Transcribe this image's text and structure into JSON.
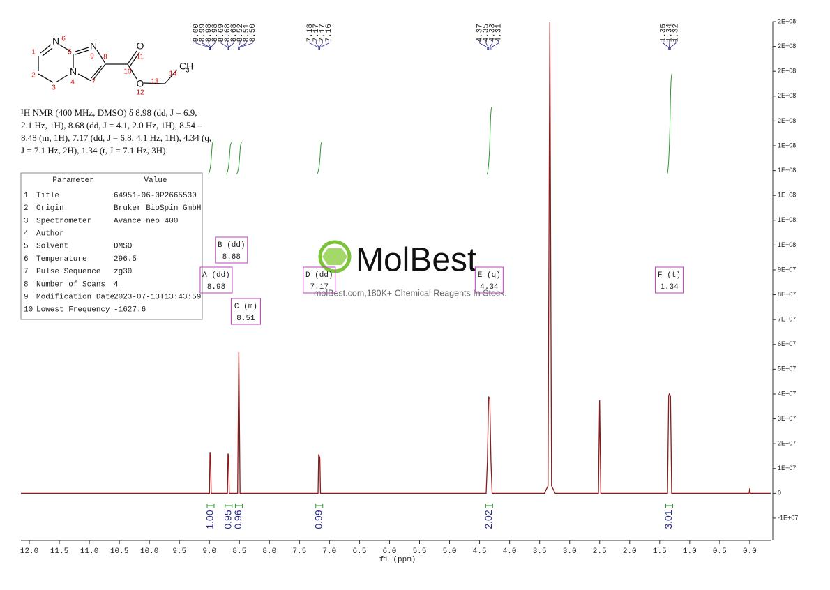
{
  "structure": {
    "atoms": [
      "N",
      "N",
      "N",
      "O",
      "O",
      "CH",
      "3"
    ],
    "numbers": [
      "1",
      "2",
      "3",
      "4",
      "5",
      "6",
      "7",
      "8",
      "9",
      "10",
      "11",
      "12",
      "13",
      "14"
    ]
  },
  "description": [
    "¹H NMR (400 MHz, DMSO) δ 8.98 (dd, J = 6.9,",
    "2.1 Hz, 1H), 8.68 (dd, J = 4.1, 2.0 Hz, 1H), 8.54 –",
    "8.48 (m, 1H), 7.17 (dd, J = 6.8, 4.1 Hz, 1H), 4.34 (q,",
    "J = 7.1 Hz, 2H), 1.34 (t, J = 7.1 Hz, 3H)."
  ],
  "parameters": {
    "header": [
      "Parameter",
      "Value"
    ],
    "rows": [
      [
        "1",
        "Title",
        "64951-06-0P2665530"
      ],
      [
        "2",
        "Origin",
        "Bruker BioSpin GmbH"
      ],
      [
        "3",
        "Spectrometer",
        "Avance neo 400"
      ],
      [
        "4",
        "Author"
      ],
      [
        "5",
        "Solvent",
        "DMSO"
      ],
      [
        "6",
        "Temperature",
        "296.5"
      ],
      [
        "7",
        "Pulse Sequence",
        "zg30"
      ],
      [
        "8",
        "Number of Scans",
        "4"
      ],
      [
        "9",
        "Modification Date",
        "2023-07-13T13:43:59"
      ],
      [
        "10",
        "Lowest Frequency",
        "-1627.6"
      ]
    ]
  },
  "watermark": {
    "brand": "MolBest",
    "tagline": "molBest.com,180K+ Chemical Reagents In Stock."
  },
  "chart_data": {
    "type": "line",
    "color": "#8b1a1a",
    "xlabel": "f1 (ppm)",
    "x": [
      12.14,
      9.0,
      8.99,
      8.98,
      8.97,
      8.7,
      8.69,
      8.68,
      8.67,
      8.53,
      8.51,
      8.49,
      7.19,
      7.18,
      7.17,
      7.16,
      7.15,
      4.39,
      4.37,
      4.35,
      4.33,
      4.31,
      4.29,
      3.42,
      3.36,
      3.33,
      3.3,
      3.24,
      2.52,
      2.5,
      2.48,
      1.37,
      1.35,
      1.34,
      1.32,
      1.3,
      0.01,
      0.0,
      -0.01,
      -0.35
    ],
    "values": [
      0,
      0,
      16600000,
      15000000,
      0,
      0,
      16000000,
      15000000,
      0,
      0,
      57000000,
      0,
      0,
      15700000,
      15000000,
      14000000,
      0,
      0,
      13000000,
      39000000,
      38000000,
      13000000,
      0,
      0,
      3000000,
      190000000,
      3000000,
      0,
      0,
      37500000,
      0,
      0,
      39000000,
      40000000,
      39000000,
      0,
      0,
      2000000,
      0,
      0
    ],
    "xlim": [
      12.14,
      -0.35
    ],
    "ylim": [
      -19000000,
      190000000
    ],
    "xticks": [
      {
        "value": 12,
        "label": "12.0"
      },
      11.5,
      {
        "value": 11,
        "label": "11.0"
      },
      10.5,
      {
        "value": 10,
        "label": "10.0"
      },
      9.5,
      {
        "value": 9,
        "label": "9.0"
      },
      8.5,
      {
        "value": 8,
        "label": "8.0"
      },
      7.5,
      {
        "value": 7,
        "label": "7.0"
      },
      6.5,
      {
        "value": 6,
        "label": "6.0"
      },
      5.5,
      {
        "value": 5,
        "label": "5.0"
      },
      4.5,
      {
        "value": 4,
        "label": "4.0"
      },
      3.5,
      {
        "value": 3,
        "label": "3.0"
      },
      2.5,
      {
        "value": 2,
        "label": "2.0"
      },
      1.5,
      {
        "value": 1,
        "label": "1.0"
      },
      0.5,
      {
        "value": 0,
        "label": "0.0"
      }
    ],
    "yticks": [
      {
        "value": -10000000,
        "label": "-1E+07"
      },
      0,
      {
        "value": 10000000,
        "label": "1E+07"
      },
      {
        "value": 20000000,
        "label": "2E+07"
      },
      {
        "value": 30000000,
        "label": "3E+07"
      },
      {
        "value": 40000000,
        "label": "4E+07"
      },
      {
        "value": 50000000,
        "label": "5E+07"
      },
      {
        "value": 60000000,
        "label": "6E+07"
      },
      {
        "value": 70000000,
        "label": "7E+07"
      },
      {
        "value": 80000000,
        "label": "8E+07"
      },
      {
        "value": 90000000,
        "label": "9E+07"
      },
      {
        "value": 100000000,
        "label": "1E+08"
      },
      {
        "value": 110000000,
        "label": "1E+08"
      },
      {
        "value": 120000000,
        "label": "1E+08"
      },
      {
        "value": 130000000,
        "label": "1E+08"
      },
      {
        "value": 140000000,
        "label": "1E+08"
      },
      {
        "value": 150000000,
        "label": "2E+08"
      },
      {
        "value": 160000000,
        "label": "2E+08"
      },
      {
        "value": 170000000,
        "label": "2E+08"
      },
      {
        "value": 180000000,
        "label": "2E+08"
      },
      {
        "value": 190000000,
        "label": "2E+08"
      }
    ],
    "peak_labels": [
      "9.00",
      "8.99",
      "8.98",
      "8.98",
      "8.69",
      "8.68",
      "8.68",
      "8.52",
      "8.51",
      "8.50",
      "7.18",
      "7.17",
      "7.17",
      "7.16",
      "4.37",
      "4.35",
      "4.33",
      "4.31",
      "1.35",
      "1.34",
      "1.32"
    ],
    "multiplets": [
      {
        "name": "A (dd)",
        "shift": 8.98
      },
      {
        "name": "B (dd)",
        "shift": 8.68
      },
      {
        "name": "C (m)",
        "shift": 8.51
      },
      {
        "name": "D (dd)",
        "shift": 7.17
      },
      {
        "name": "E (q)",
        "shift": 4.34
      },
      {
        "name": "F (t)",
        "shift": 1.34
      }
    ],
    "integrals": [
      1.0,
      0.95,
      0.96,
      0.99,
      2.02,
      3.01
    ],
    "integral_labels": [
      "1.00",
      "0.95",
      "0.96",
      "0.99",
      "2.02",
      "3.01"
    ]
  }
}
